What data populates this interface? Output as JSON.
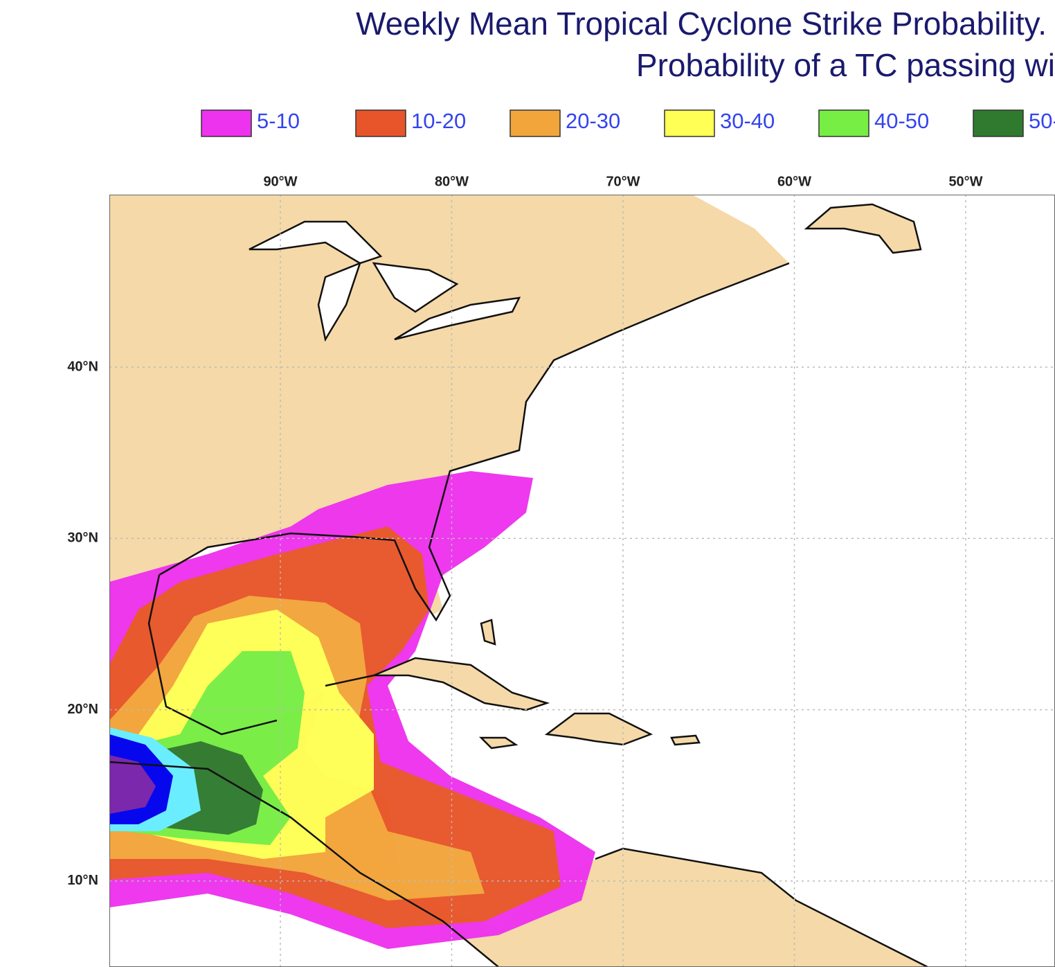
{
  "header": {
    "title": "Weekly Mean Tropical Cyclone Strike Probability.",
    "subtitle": "Probability of a TC passing wi"
  },
  "legend": {
    "items": [
      {
        "label": "5-10",
        "color": "#ee33ee"
      },
      {
        "label": "10-20",
        "color": "#e8552a"
      },
      {
        "label": "20-30",
        "color": "#f2a53a"
      },
      {
        "label": "30-40",
        "color": "#ffff55"
      },
      {
        "label": "40-50",
        "color": "#77ee44"
      },
      {
        "label": "50-",
        "color": "#2f7a2f"
      }
    ]
  },
  "axes": {
    "longitudes": [
      "90°W",
      "80°W",
      "70°W",
      "60°W",
      "50°W"
    ],
    "latitudes": [
      "40°N",
      "30°N",
      "20°N",
      "10°N"
    ]
  }
}
